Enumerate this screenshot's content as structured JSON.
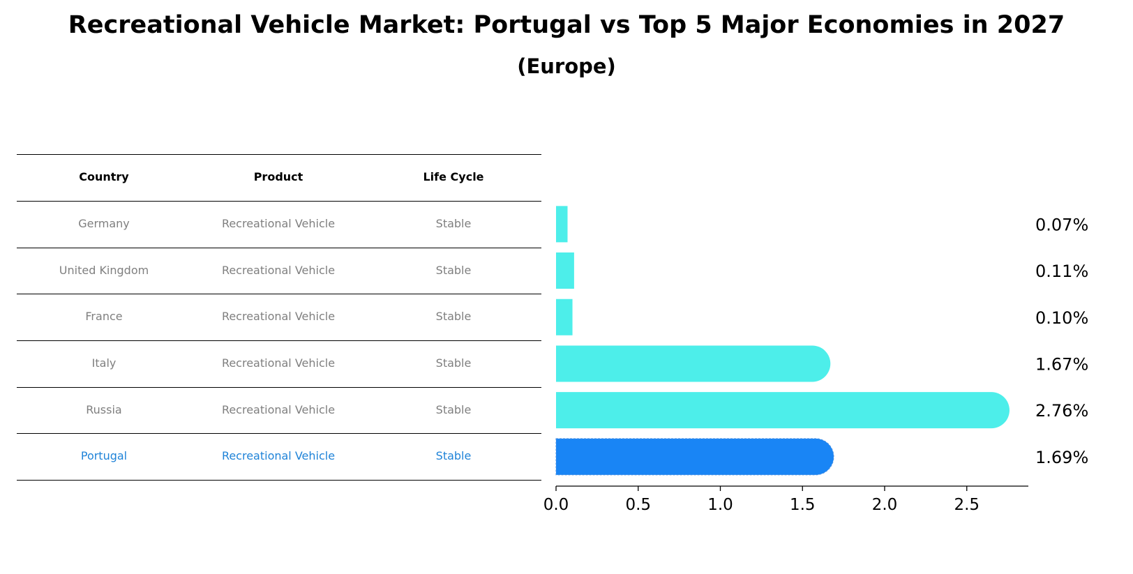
{
  "title": "Recreational Vehicle Market: Portugal vs Top 5 Major Economies in 2027",
  "subtitle": "(Europe)",
  "table": {
    "headers": [
      "Country",
      "Product",
      "Life Cycle"
    ],
    "rows": [
      [
        "Germany",
        "Recreational Vehicle",
        "Stable"
      ],
      [
        "United Kingdom",
        "Recreational Vehicle",
        "Stable"
      ],
      [
        "France",
        "Recreational Vehicle",
        "Stable"
      ],
      [
        "Italy",
        "Recreational Vehicle",
        "Stable"
      ],
      [
        "Russia",
        "Recreational Vehicle",
        "Stable"
      ],
      [
        "Portugal",
        "Recreational Vehicle",
        "Stable"
      ]
    ],
    "highlight_row": 5
  },
  "colors": {
    "bar": "#4deeea",
    "highlight_bar": "#1985f5",
    "highlight_text": "#1f83d8",
    "muted_text": "#7f7f7f"
  },
  "chart_data": {
    "type": "bar",
    "orientation": "horizontal",
    "categories": [
      "Germany",
      "United Kingdom",
      "France",
      "Italy",
      "Russia",
      "Portugal"
    ],
    "values": [
      0.07,
      0.11,
      0.1,
      1.67,
      2.76,
      1.69
    ],
    "value_labels": [
      "0.07%",
      "0.11%",
      "0.10%",
      "1.67%",
      "2.76%",
      "1.69%"
    ],
    "xlim": [
      0,
      2.9
    ],
    "xticks": [
      0.0,
      0.5,
      1.0,
      1.5,
      2.0,
      2.5
    ],
    "xtick_labels": [
      "0.0",
      "0.5",
      "1.0",
      "1.5",
      "2.0",
      "2.5"
    ],
    "highlight_category": "Portugal"
  }
}
